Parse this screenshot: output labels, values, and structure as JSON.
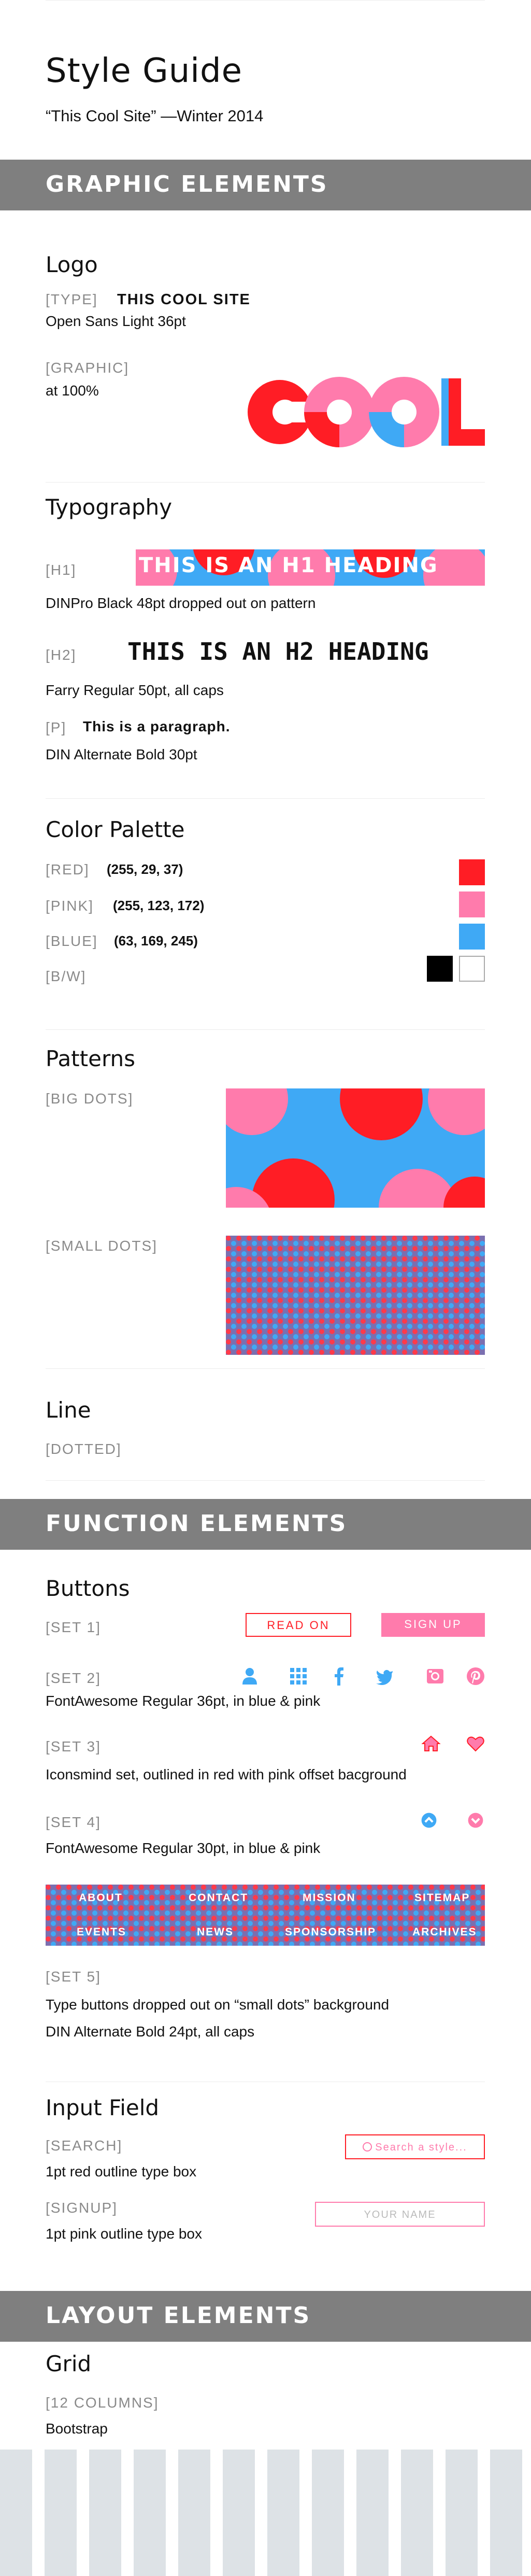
{
  "header": {
    "title": "Style Guide",
    "subtitle": "“This Cool Site” —Winter 2014"
  },
  "sections": {
    "graphic": "GRAPHIC ELEMENTS",
    "function": "FUNCTION ELEMENTS",
    "layout": "LAYOUT ELEMENTS"
  },
  "logo": {
    "heading": "Logo",
    "type_tag": "[TYPE]",
    "type_sample": "THIS COOL SITE",
    "type_desc": "Open Sans Light 36pt",
    "graphic_tag": "[GRAPHIC]",
    "graphic_desc": "at 100%",
    "graphic_text": "COOL"
  },
  "typography": {
    "heading": "Typography",
    "h1_tag": "[H1]",
    "h1_sample": "THIS IS AN H1 HEADING",
    "h1_desc": "DINPro Black 48pt dropped out on pattern",
    "h2_tag": "[H2]",
    "h2_sample": "THIS IS AN H2 HEADING",
    "h2_desc": "Farry Regular 50pt, all caps",
    "p_tag": "[P]",
    "p_sample": "This is a paragraph.",
    "p_desc": "DIN Alternate Bold 30pt"
  },
  "palette": {
    "heading": "Color Palette",
    "red_tag": "[RED]",
    "red_value": "(255, 29, 37)",
    "red_hex": "#ff1d25",
    "pink_tag": "[PINK]",
    "pink_value": "(255, 123, 172)",
    "pink_hex": "#ff7bac",
    "blue_tag": "[BLUE]",
    "blue_value": "(63, 169, 245)",
    "blue_hex": "#3fa9f5",
    "bw_tag": "[B/W]"
  },
  "patterns": {
    "heading": "Patterns",
    "big_tag": "[BIG DOTS]",
    "small_tag": "[SMALL DOTS]"
  },
  "line": {
    "heading": "Line",
    "tag": "[DOTTED]"
  },
  "buttons": {
    "heading": "Buttons",
    "set1_tag": "[SET 1]",
    "read_on": "READ ON",
    "sign_up": "SIGN UP",
    "set2_tag": "[SET 2]",
    "set2_desc": "FontAwesome Regular 36pt, in blue & pink",
    "set3_tag": "[SET 3]",
    "set3_desc": "Iconsmind set, outlined in red with pink offset bacground",
    "set4_tag": "[SET 4]",
    "set4_desc": "FontAwesome Regular 30pt, in blue & pink",
    "nav": [
      "ABOUT",
      "CONTACT",
      "MISSION",
      "SITEMAP",
      "EVENTS",
      "NEWS",
      "SPONSORSHIP",
      "ARCHIVES"
    ],
    "set5_tag": "[SET 5]",
    "set5_desc1": "Type buttons dropped out on “small dots” background",
    "set5_desc2": "DIN Alternate Bold 24pt, all caps"
  },
  "input_field": {
    "heading": "Input Field",
    "search_tag": "[SEARCH]",
    "search_desc": "1pt red outline type box",
    "search_placeholder": "Search a style...",
    "signup_tag": "[SIGNUP]",
    "signup_desc": "1pt pink outline type box",
    "signup_placeholder": "YOUR NAME"
  },
  "grid": {
    "heading": "Grid",
    "tag": "[12 COLUMNS]",
    "desc": "Bootstrap",
    "columns": 12
  }
}
